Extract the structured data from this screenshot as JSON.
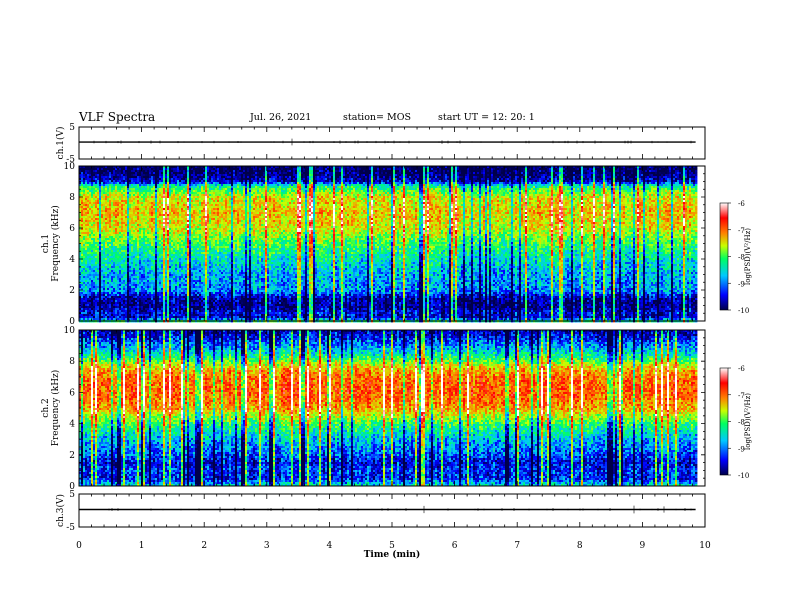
{
  "header": {
    "title": "VLF Spectra",
    "date": "Jul. 26, 2021",
    "station": "station= MOS",
    "start": "start UT =   12: 20: 1"
  },
  "chart_data": [
    {
      "type": "line",
      "panel": "ch.1 voltage waveform",
      "ylabel": "ch.1(V)",
      "yticks": [
        "5",
        "-5"
      ],
      "ylim": [
        -5,
        5
      ],
      "x_range_min": [
        0,
        9.85
      ],
      "baseline_v": 0.3,
      "line_color": "#000000"
    },
    {
      "type": "heatmap",
      "panel": "ch.1 spectrogram",
      "ylabel": "ch.1\nFrequency (kHz)",
      "yticks": [
        "0",
        "2",
        "4",
        "6",
        "8",
        "10"
      ],
      "ylim_khz": [
        0,
        10
      ],
      "x_range_min": [
        0,
        9.85
      ],
      "colorbar": {
        "label": "log(PSD)(V²/Hz)",
        "ticks": [
          "-6",
          "-7",
          "-8",
          "-9",
          "-10"
        ],
        "range": [
          -10,
          -6
        ],
        "colormap": [
          "#00004a",
          "#0000ff",
          "#00c8ff",
          "#00ff60",
          "#c8ff00",
          "#ff8000",
          "#ff0000",
          "#ffffff"
        ]
      },
      "freq_profile_logpsd": {
        "khz": [
          0,
          0.3,
          0.6,
          1.0,
          1.5,
          2.0,
          3.0,
          4.0,
          5.0,
          6.0,
          7.0,
          8.0,
          8.7,
          9.0,
          9.5,
          10.0
        ],
        "value": [
          -8.2,
          -9.6,
          -9.5,
          -9.8,
          -9.7,
          -9.0,
          -8.9,
          -8.6,
          -8.2,
          -7.6,
          -7.4,
          -7.6,
          -8.4,
          -9.6,
          -9.9,
          -10.0
        ]
      }
    },
    {
      "type": "heatmap",
      "panel": "ch.2 spectrogram",
      "ylabel": "ch.2\nFrequency (kHz)",
      "yticks": [
        "0",
        "2",
        "4",
        "6",
        "8",
        "10"
      ],
      "ylim_khz": [
        0,
        10
      ],
      "x_range_min": [
        0,
        9.85
      ],
      "colorbar": {
        "label": "log(PSD)(V²/Hz)",
        "ticks": [
          "-6",
          "-7",
          "-8",
          "-9",
          "-10"
        ],
        "range": [
          -10,
          -6
        ],
        "colormap": [
          "#00004a",
          "#0000ff",
          "#00c8ff",
          "#00ff60",
          "#c8ff00",
          "#ff8000",
          "#ff0000",
          "#ffffff"
        ]
      },
      "freq_profile_logpsd": {
        "khz": [
          0,
          0.5,
          1.0,
          1.5,
          2.0,
          3.0,
          4.0,
          5.0,
          6.0,
          7.0,
          7.6,
          8.0,
          8.5,
          9.0,
          9.5,
          10.0
        ],
        "value": [
          -8.6,
          -9.4,
          -9.3,
          -9.5,
          -9.2,
          -8.8,
          -8.2,
          -7.2,
          -6.9,
          -7.0,
          -7.4,
          -8.0,
          -8.6,
          -9.0,
          -9.4,
          -9.7
        ]
      }
    },
    {
      "type": "line",
      "panel": "ch.3 voltage waveform",
      "ylabel": "ch.3(V)",
      "yticks": [
        "5",
        "-5"
      ],
      "ylim": [
        -5,
        5
      ],
      "x_range_min": [
        0,
        9.85
      ],
      "baseline_v": 0.3,
      "line_color": "#000000"
    }
  ],
  "time_axis": {
    "xlabel": "Time (min)",
    "ticks": [
      "0",
      "1",
      "2",
      "3",
      "4",
      "5",
      "6",
      "7",
      "8",
      "9",
      "10"
    ],
    "xlim": [
      0,
      10
    ]
  }
}
